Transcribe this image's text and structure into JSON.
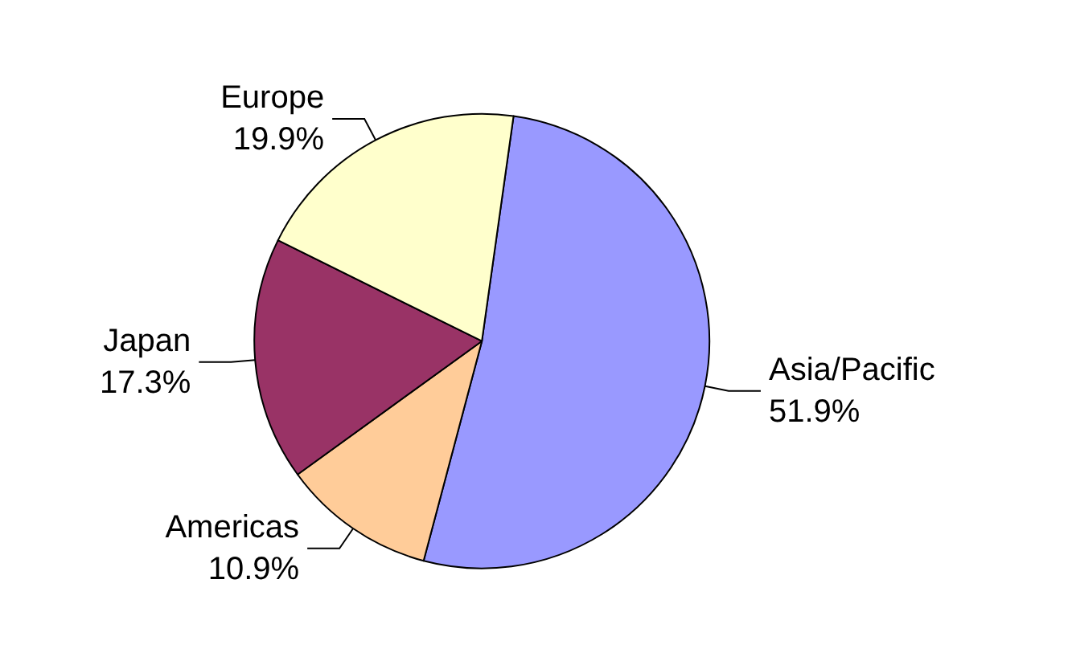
{
  "chart_data": {
    "type": "pie",
    "categories": [
      "Asia/Pacific",
      "Americas",
      "Japan",
      "Europe"
    ],
    "values": [
      51.9,
      10.9,
      17.3,
      19.9
    ],
    "colors": [
      "#9999ff",
      "#ffcc99",
      "#993366",
      "#ffffcc"
    ],
    "value_labels": [
      "51.9%",
      "10.9%",
      "17.3%",
      "19.9%"
    ],
    "legend": false
  }
}
